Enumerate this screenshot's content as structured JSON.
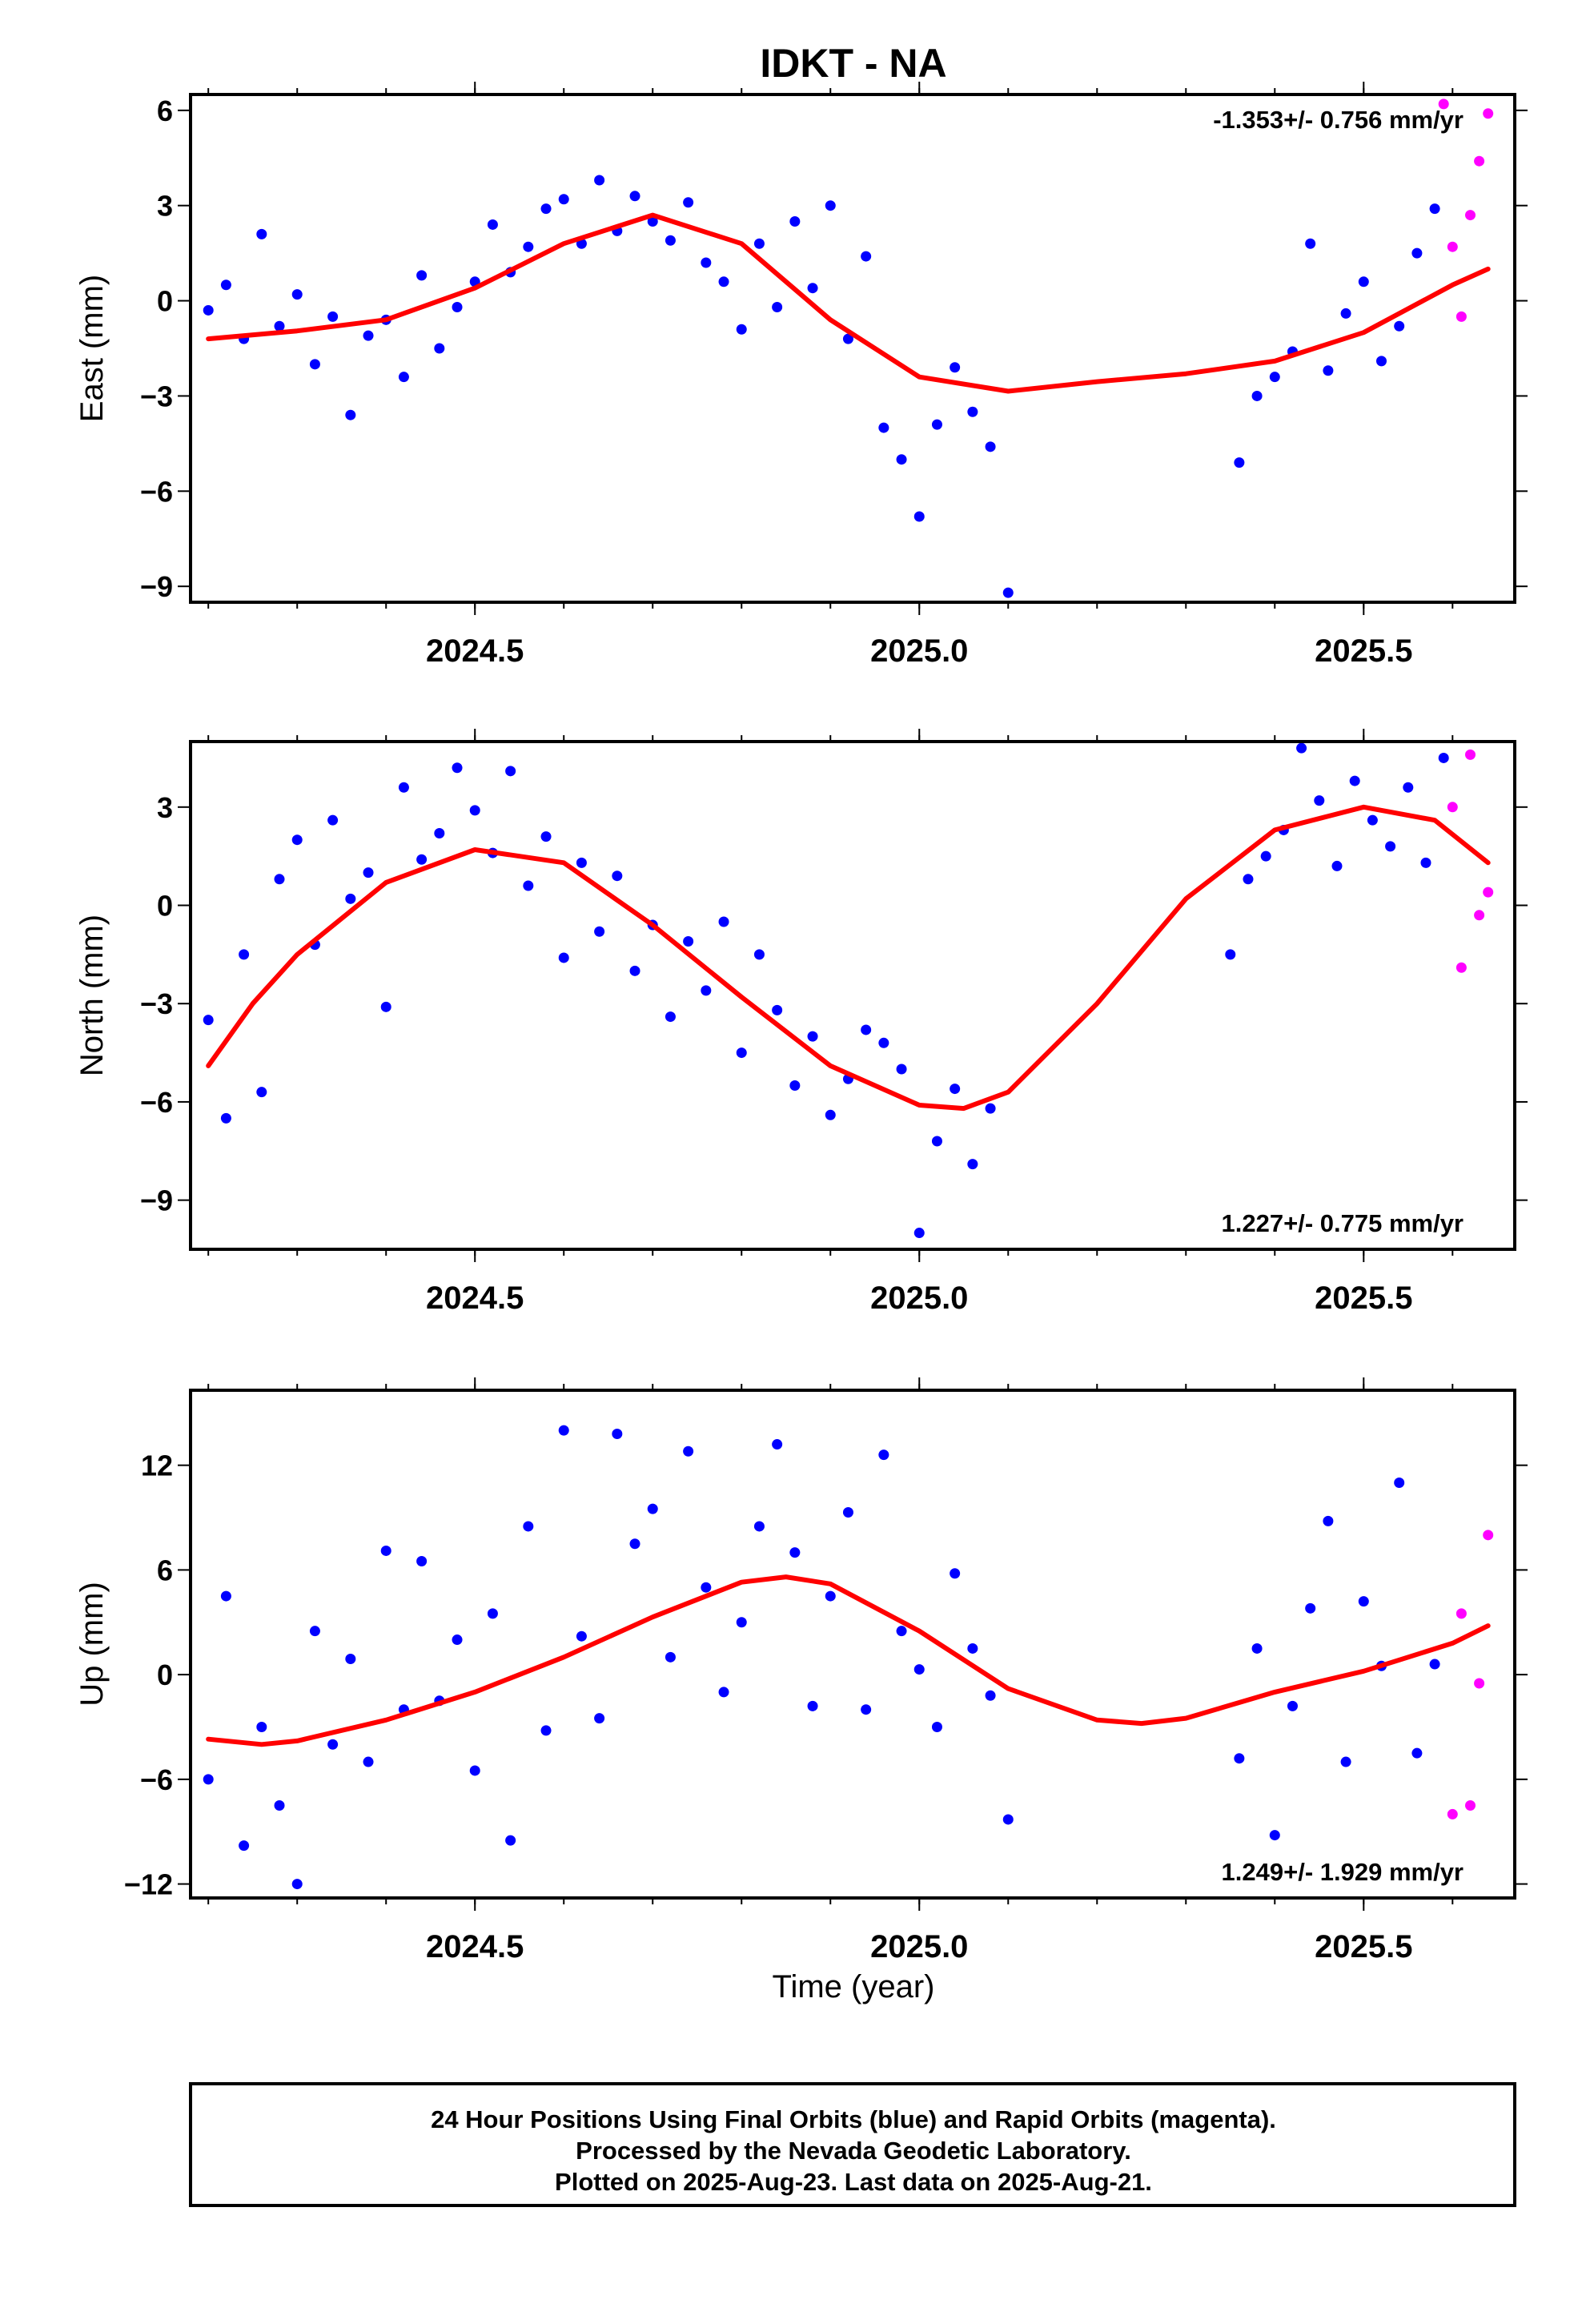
{
  "title": "IDKT - NA",
  "xlabel": "Time (year)",
  "footer": {
    "line1": "24 Hour Positions Using Final Orbits (blue) and Rapid Orbits (magenta).",
    "line2": "Processed by the Nevada Geodetic Laboratory.",
    "line3": "Plotted on 2025-Aug-23. Last data on 2025-Aug-21."
  },
  "colors": {
    "final": "#0000ff",
    "rapid": "#ff00ff",
    "fit": "#ff0000",
    "frame": "#000000"
  },
  "chart_data": [
    {
      "type": "scatter",
      "ylabel": "East (mm)",
      "rate": "-1.353+/- 0.756 mm/yr",
      "xlim": [
        2024.18,
        2025.67
      ],
      "ylim": [
        -9.5,
        6.5
      ],
      "yticks": [
        6,
        3,
        0,
        -3,
        -6,
        -9
      ],
      "ytick_labels": [
        "6",
        "3",
        "0",
        "−3",
        "−6",
        "−9"
      ],
      "xticks": [
        2024.5,
        2025.0,
        2025.5
      ],
      "xtick_labels": [
        "2024.5",
        "2025.0",
        "2025.5"
      ],
      "series": [
        {
          "name": "Final",
          "x": [
            2024.2,
            2024.22,
            2024.24,
            2024.26,
            2024.28,
            2024.3,
            2024.32,
            2024.34,
            2024.36,
            2024.38,
            2024.4,
            2024.42,
            2024.44,
            2024.46,
            2024.48,
            2024.5,
            2024.52,
            2024.54,
            2024.56,
            2024.58,
            2024.6,
            2024.62,
            2024.64,
            2024.66,
            2024.68,
            2024.7,
            2024.72,
            2024.74,
            2024.76,
            2024.78,
            2024.8,
            2024.82,
            2024.84,
            2024.86,
            2024.88,
            2024.9,
            2024.92,
            2024.94,
            2024.96,
            2024.98,
            2025.0,
            2025.02,
            2025.04,
            2025.06,
            2025.08,
            2025.1,
            2025.36,
            2025.38,
            2025.4,
            2025.42,
            2025.44,
            2025.46,
            2025.48,
            2025.5,
            2025.52,
            2025.54,
            2025.56,
            2025.58
          ],
          "y": [
            -0.3,
            0.5,
            -1.2,
            2.1,
            -0.8,
            0.2,
            -2.0,
            -0.5,
            -3.6,
            -1.1,
            -0.6,
            -2.4,
            0.8,
            -1.5,
            -0.2,
            0.6,
            2.4,
            0.9,
            1.7,
            2.9,
            3.2,
            1.8,
            3.8,
            2.2,
            3.3,
            2.5,
            1.9,
            3.1,
            1.2,
            0.6,
            -0.9,
            1.8,
            -0.2,
            2.5,
            0.4,
            3.0,
            -1.2,
            1.4,
            -4.0,
            -5.0,
            -6.8,
            -3.9,
            -2.1,
            -3.5,
            -4.6,
            -9.2,
            -5.1,
            -3.0,
            -2.4,
            -1.6,
            1.8,
            -2.2,
            -0.4,
            0.6,
            -1.9,
            -0.8,
            1.5,
            2.9
          ]
        },
        {
          "name": "Rapid",
          "x": [
            2025.59,
            2025.6,
            2025.61,
            2025.62,
            2025.63,
            2025.64
          ],
          "y": [
            6.2,
            1.7,
            -0.5,
            2.7,
            4.4,
            5.9
          ]
        }
      ],
      "fit": {
        "x": [
          2024.2,
          2024.3,
          2024.4,
          2024.5,
          2024.6,
          2024.7,
          2024.8,
          2024.9,
          2025.0,
          2025.1,
          2025.2,
          2025.3,
          2025.4,
          2025.5,
          2025.6,
          2025.64
        ],
        "y": [
          -1.2,
          -0.95,
          -0.6,
          0.4,
          1.8,
          2.7,
          1.8,
          -0.6,
          -2.4,
          -2.85,
          -2.55,
          -2.3,
          -1.9,
          -1.0,
          0.5,
          1.0
        ]
      }
    },
    {
      "type": "scatter",
      "ylabel": "North (mm)",
      "rate": "1.227+/- 0.775 mm/yr",
      "xlim": [
        2024.18,
        2025.67
      ],
      "ylim": [
        -10.5,
        5.0
      ],
      "yticks": [
        3,
        0,
        -3,
        -6,
        -9
      ],
      "ytick_labels": [
        "3",
        "0",
        "−3",
        "−6",
        "−9"
      ],
      "xticks": [
        2024.5,
        2025.0,
        2025.5
      ],
      "xtick_labels": [
        "2024.5",
        "2025.0",
        "2025.5"
      ],
      "series": [
        {
          "name": "Final",
          "x": [
            2024.2,
            2024.22,
            2024.24,
            2024.26,
            2024.28,
            2024.3,
            2024.32,
            2024.34,
            2024.36,
            2024.38,
            2024.4,
            2024.42,
            2024.44,
            2024.46,
            2024.48,
            2024.5,
            2024.52,
            2024.54,
            2024.56,
            2024.58,
            2024.6,
            2024.62,
            2024.64,
            2024.66,
            2024.68,
            2024.7,
            2024.72,
            2024.74,
            2024.76,
            2024.78,
            2024.8,
            2024.82,
            2024.84,
            2024.86,
            2024.88,
            2024.9,
            2024.92,
            2024.94,
            2024.96,
            2024.98,
            2025.0,
            2025.02,
            2025.04,
            2025.06,
            2025.08,
            2025.35,
            2025.37,
            2025.39,
            2025.41,
            2025.43,
            2025.45,
            2025.47,
            2025.49,
            2025.51,
            2025.53,
            2025.55,
            2025.57,
            2025.59
          ],
          "y": [
            -3.5,
            -6.5,
            -1.5,
            -5.7,
            0.8,
            2.0,
            -1.2,
            2.6,
            0.2,
            1.0,
            -3.1,
            3.6,
            1.4,
            2.2,
            4.2,
            2.9,
            1.6,
            4.1,
            0.6,
            2.1,
            -1.6,
            1.3,
            -0.8,
            0.9,
            -2.0,
            -0.6,
            -3.4,
            -1.1,
            -2.6,
            -0.5,
            -4.5,
            -1.5,
            -3.2,
            -5.5,
            -4.0,
            -6.4,
            -5.3,
            -3.8,
            -4.2,
            -5.0,
            -10.0,
            -7.2,
            -5.6,
            -7.9,
            -6.2,
            -1.5,
            0.8,
            1.5,
            2.3,
            4.8,
            3.2,
            1.2,
            3.8,
            2.6,
            1.8,
            3.6,
            1.3,
            4.5
          ]
        },
        {
          "name": "Rapid",
          "x": [
            2025.6,
            2025.61,
            2025.62,
            2025.63,
            2025.64
          ],
          "y": [
            3.0,
            -1.9,
            4.6,
            -0.3,
            0.4
          ]
        }
      ],
      "fit": {
        "x": [
          2024.2,
          2024.25,
          2024.3,
          2024.4,
          2024.5,
          2024.6,
          2024.7,
          2024.8,
          2024.9,
          2025.0,
          2025.05,
          2025.1,
          2025.2,
          2025.3,
          2025.4,
          2025.5,
          2025.58,
          2025.64
        ],
        "y": [
          -4.9,
          -3.0,
          -1.5,
          0.7,
          1.7,
          1.3,
          -0.6,
          -2.8,
          -4.9,
          -6.1,
          -6.2,
          -5.7,
          -3.0,
          0.2,
          2.3,
          3.0,
          2.6,
          1.3
        ]
      }
    },
    {
      "type": "scatter",
      "ylabel": "Up (mm)",
      "rate": "1.249+/- 1.929 mm/yr",
      "xlim": [
        2024.18,
        2025.67
      ],
      "ylim": [
        -12.8,
        16.3
      ],
      "yticks": [
        12,
        6,
        0,
        -6,
        -12
      ],
      "ytick_labels": [
        "12",
        "6",
        "0",
        "−6",
        "−12"
      ],
      "xticks": [
        2024.5,
        2025.0,
        2025.5
      ],
      "xtick_labels": [
        "2024.5",
        "2025.0",
        "2025.5"
      ],
      "series": [
        {
          "name": "Final",
          "x": [
            2024.2,
            2024.22,
            2024.24,
            2024.26,
            2024.28,
            2024.3,
            2024.32,
            2024.34,
            2024.36,
            2024.38,
            2024.4,
            2024.42,
            2024.44,
            2024.46,
            2024.48,
            2024.5,
            2024.52,
            2024.54,
            2024.56,
            2024.58,
            2024.6,
            2024.62,
            2024.64,
            2024.66,
            2024.68,
            2024.7,
            2024.72,
            2024.74,
            2024.76,
            2024.78,
            2024.8,
            2024.82,
            2024.84,
            2024.86,
            2024.88,
            2024.9,
            2024.92,
            2024.94,
            2024.96,
            2024.98,
            2025.0,
            2025.02,
            2025.04,
            2025.06,
            2025.08,
            2025.1,
            2025.36,
            2025.38,
            2025.4,
            2025.42,
            2025.44,
            2025.46,
            2025.48,
            2025.5,
            2025.52,
            2025.54,
            2025.56,
            2025.58
          ],
          "y": [
            -6.0,
            4.5,
            -9.8,
            -3.0,
            -7.5,
            -12.0,
            2.5,
            -4.0,
            0.9,
            -5.0,
            7.1,
            -2.0,
            6.5,
            -1.5,
            2.0,
            -5.5,
            3.5,
            -9.5,
            8.5,
            -3.2,
            14.0,
            2.2,
            -2.5,
            13.8,
            7.5,
            9.5,
            1.0,
            12.8,
            5.0,
            -1.0,
            3.0,
            8.5,
            13.2,
            7.0,
            -1.8,
            4.5,
            9.3,
            -2.0,
            12.6,
            2.5,
            0.3,
            -3.0,
            5.8,
            1.5,
            -1.2,
            -8.3,
            -4.8,
            1.5,
            -9.2,
            -1.8,
            3.8,
            8.8,
            -5.0,
            4.2,
            0.5,
            11.0,
            -4.5,
            0.6
          ]
        },
        {
          "name": "Rapid",
          "x": [
            2025.6,
            2025.61,
            2025.62,
            2025.63,
            2025.64
          ],
          "y": [
            -8.0,
            3.5,
            -7.5,
            -0.5,
            8.0
          ]
        }
      ],
      "fit": {
        "x": [
          2024.2,
          2024.26,
          2024.3,
          2024.4,
          2024.5,
          2024.6,
          2024.7,
          2024.8,
          2024.85,
          2024.9,
          2025.0,
          2025.1,
          2025.2,
          2025.25,
          2025.3,
          2025.4,
          2025.5,
          2025.6,
          2025.64
        ],
        "y": [
          -3.7,
          -4.0,
          -3.8,
          -2.6,
          -1.0,
          1.0,
          3.3,
          5.3,
          5.6,
          5.2,
          2.5,
          -0.8,
          -2.6,
          -2.8,
          -2.5,
          -1.0,
          0.2,
          1.8,
          2.8
        ]
      }
    }
  ]
}
